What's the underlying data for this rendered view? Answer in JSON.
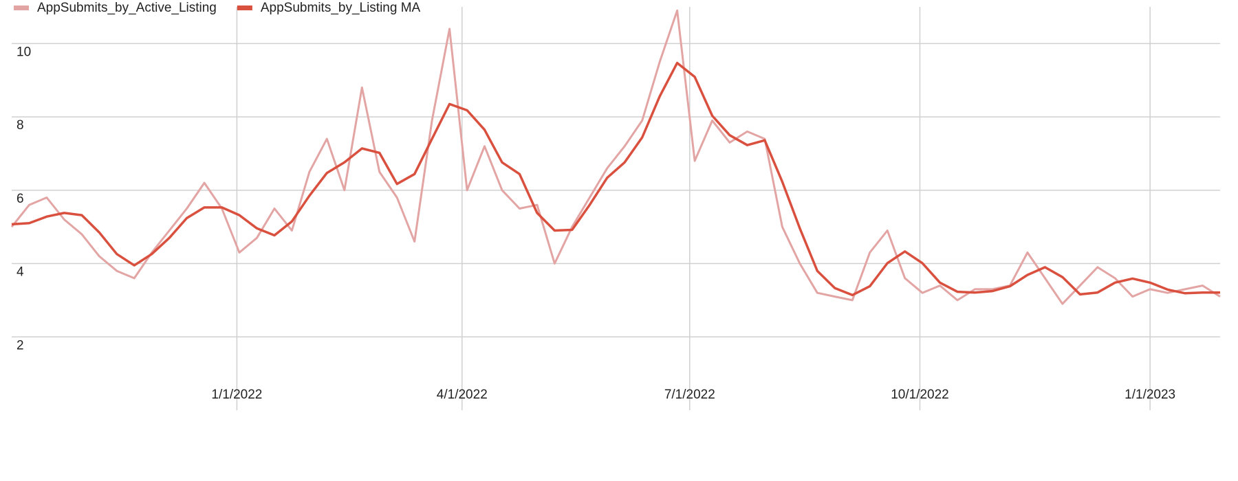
{
  "chart_data": {
    "type": "line",
    "x": [
      "2021-10-03",
      "2021-10-10",
      "2021-10-17",
      "2021-10-24",
      "2021-10-31",
      "2021-11-07",
      "2021-11-14",
      "2021-11-21",
      "2021-11-28",
      "2021-12-05",
      "2021-12-12",
      "2021-12-19",
      "2021-12-26",
      "2022-01-02",
      "2022-01-09",
      "2022-01-16",
      "2022-01-23",
      "2022-01-30",
      "2022-02-06",
      "2022-02-13",
      "2022-02-20",
      "2022-02-27",
      "2022-03-06",
      "2022-03-13",
      "2022-03-20",
      "2022-03-27",
      "2022-04-03",
      "2022-04-10",
      "2022-04-17",
      "2022-04-24",
      "2022-05-01",
      "2022-05-08",
      "2022-05-15",
      "2022-05-22",
      "2022-05-29",
      "2022-06-05",
      "2022-06-12",
      "2022-06-19",
      "2022-06-26",
      "2022-07-03",
      "2022-07-10",
      "2022-07-17",
      "2022-07-24",
      "2022-07-31",
      "2022-08-07",
      "2022-08-14",
      "2022-08-21",
      "2022-08-28",
      "2022-09-04",
      "2022-09-11",
      "2022-09-18",
      "2022-09-25",
      "2022-10-02",
      "2022-10-09",
      "2022-10-16",
      "2022-10-23",
      "2022-10-30",
      "2022-11-06",
      "2022-11-13",
      "2022-11-20",
      "2022-11-27",
      "2022-12-04",
      "2022-12-11",
      "2022-12-18",
      "2022-12-25",
      "2023-01-01",
      "2023-01-08",
      "2023-01-15",
      "2023-01-22",
      "2023-01-29"
    ],
    "series": [
      {
        "name": "AppSubmits_by_Active_Listing",
        "color": "#e3a4a4",
        "width": 3,
        "values": [
          5.0,
          5.6,
          5.8,
          5.2,
          4.8,
          4.2,
          3.8,
          3.6,
          4.3,
          4.9,
          5.5,
          6.2,
          5.5,
          4.3,
          4.7,
          5.5,
          4.9,
          6.5,
          7.4,
          6.0,
          8.8,
          6.5,
          5.8,
          4.6,
          7.9,
          10.4,
          6.0,
          7.2,
          6.0,
          5.5,
          5.6,
          4.0,
          5.0,
          5.8,
          6.6,
          7.2,
          7.9,
          9.5,
          10.9,
          6.8,
          7.9,
          7.3,
          7.6,
          7.4,
          5.0,
          4.0,
          3.2,
          3.1,
          3.0,
          4.3,
          4.9,
          3.6,
          3.2,
          3.4,
          3.0,
          3.3,
          3.3,
          3.4,
          4.3,
          3.6,
          2.9,
          3.4,
          3.9,
          3.6,
          3.1,
          3.3,
          3.2,
          3.3,
          3.4,
          3.1
        ]
      },
      {
        "name": "AppSubmits_by_Listing MA",
        "color": "#d9503f",
        "width": 3.5,
        "values": [
          5.07,
          5.1,
          5.28,
          5.38,
          5.32,
          4.85,
          4.26,
          3.95,
          4.26,
          4.7,
          5.24,
          5.53,
          5.53,
          5.32,
          4.96,
          4.77,
          5.15,
          5.85,
          6.47,
          6.76,
          7.14,
          7.02,
          6.17,
          6.44,
          7.4,
          8.35,
          8.18,
          7.65,
          6.76,
          6.44,
          5.38,
          4.9,
          4.92,
          5.6,
          6.34,
          6.76,
          7.44,
          8.56,
          9.47,
          9.09,
          8.03,
          7.5,
          7.23,
          7.36,
          6.23,
          4.96,
          3.8,
          3.33,
          3.14,
          3.38,
          4.01,
          4.33,
          4.01,
          3.48,
          3.23,
          3.21,
          3.25,
          3.38,
          3.69,
          3.9,
          3.63,
          3.16,
          3.21,
          3.48,
          3.59,
          3.48,
          3.29,
          3.19,
          3.21,
          3.21
        ]
      }
    ],
    "xlim": [
      "2021-10-03",
      "2023-01-29"
    ],
    "xticks": [
      {
        "value": "2022-01-01",
        "label": "1/1/2022"
      },
      {
        "value": "2022-04-01",
        "label": "4/1/2022"
      },
      {
        "value": "2022-07-01",
        "label": "7/1/2022"
      },
      {
        "value": "2022-10-01",
        "label": "10/1/2022"
      },
      {
        "value": "2023-01-01",
        "label": "1/1/2023"
      }
    ],
    "ylim": [
      0,
      11
    ],
    "yticks": [
      2,
      4,
      6,
      8,
      10
    ],
    "grid": true,
    "legend": "top-left"
  }
}
